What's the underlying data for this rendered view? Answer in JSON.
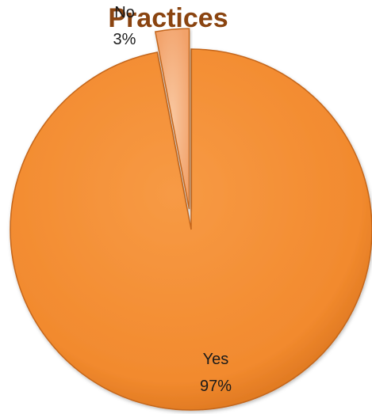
{
  "chart_data": {
    "type": "pie",
    "title": "Practices",
    "slices": [
      {
        "label": "Yes",
        "value": 97,
        "display": "97%",
        "color": "#f28a2e"
      },
      {
        "label": "No",
        "value": 3,
        "display": "3%",
        "color": "#f6b07a"
      }
    ],
    "legend": "none",
    "colors": {
      "title": "#8a4410",
      "edge": "#c4661a"
    }
  }
}
